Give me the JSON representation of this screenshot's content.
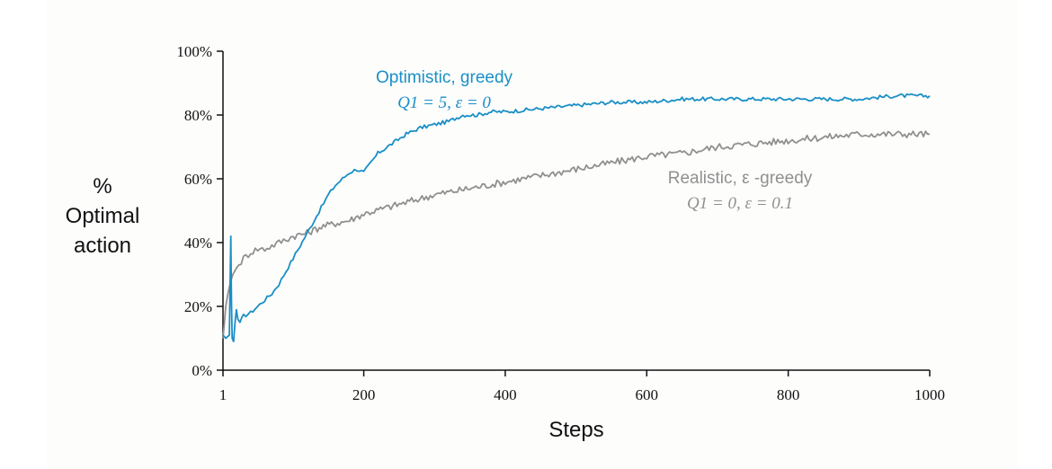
{
  "chart_data": {
    "type": "line",
    "title": "",
    "xlabel": "Steps",
    "ylabel": [
      "%",
      "Optimal",
      "action"
    ],
    "xlim": [
      1,
      1000
    ],
    "ylim": [
      0,
      100
    ],
    "x_ticks": [
      1,
      200,
      400,
      600,
      800,
      1000
    ],
    "x_tick_labels": [
      "1",
      "200",
      "400",
      "600",
      "800",
      "1000"
    ],
    "y_ticks": [
      0,
      20,
      40,
      60,
      80,
      100
    ],
    "y_tick_labels": [
      "0%",
      "20%",
      "40%",
      "60%",
      "80%",
      "100%"
    ],
    "grid": false,
    "series": [
      {
        "name": "Optimistic, greedy",
        "params": "Q1 = 5,  ε = 0",
        "color": "#1a8fc6",
        "x": [
          1,
          5,
          10,
          12,
          13,
          14,
          16,
          18,
          20,
          22,
          25,
          30,
          40,
          50,
          60,
          70,
          80,
          90,
          100,
          110,
          120,
          130,
          140,
          150,
          160,
          170,
          180,
          190,
          200,
          220,
          240,
          260,
          280,
          300,
          320,
          340,
          360,
          380,
          400,
          450,
          500,
          550,
          600,
          650,
          700,
          750,
          800,
          850,
          900,
          950,
          1000
        ],
        "values": [
          11,
          10,
          11,
          42,
          22,
          10,
          9,
          15,
          19,
          16,
          15,
          17,
          18,
          20,
          22,
          24,
          27,
          31,
          35,
          39,
          43,
          47,
          51,
          55,
          58,
          60,
          62,
          63,
          62,
          68,
          71,
          74,
          76,
          77,
          78,
          80,
          80,
          81,
          81,
          82,
          83,
          84,
          84,
          85,
          85,
          85,
          85,
          85,
          85,
          86,
          86
        ]
      },
      {
        "name": "Realistic, ε -greedy",
        "params": "Q1 = 0,  ε = 0.1",
        "color": "#909090",
        "x": [
          1,
          3,
          5,
          8,
          10,
          12,
          15,
          20,
          30,
          40,
          50,
          60,
          70,
          80,
          90,
          100,
          120,
          140,
          160,
          180,
          200,
          250,
          300,
          350,
          400,
          450,
          500,
          550,
          600,
          650,
          700,
          750,
          800,
          850,
          900,
          950,
          1000
        ],
        "values": [
          10,
          15,
          20,
          24,
          26,
          28,
          30,
          32,
          35,
          37,
          38,
          38,
          39,
          40,
          41,
          42,
          43,
          45,
          46,
          47,
          49,
          52,
          55,
          57,
          59,
          61,
          63,
          65,
          67,
          68,
          70,
          71,
          72,
          73,
          74,
          74,
          74
        ]
      }
    ],
    "annotations": [
      {
        "text": "Optimistic, greedy",
        "math": "Q1 = 5,  ε = 0"
      },
      {
        "text": "Realistic, ε -greedy",
        "math": "Q1 = 0,  ε = 0.1"
      }
    ]
  }
}
